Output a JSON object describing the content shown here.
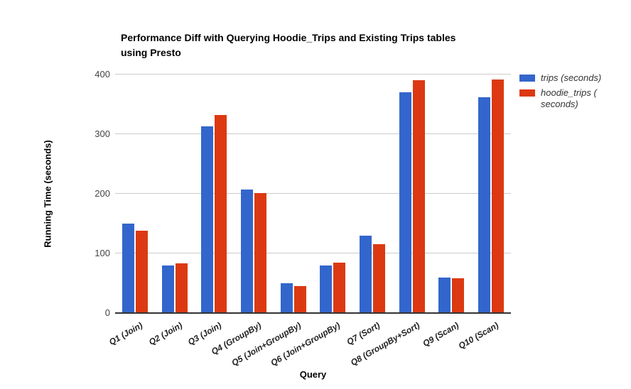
{
  "chart_data": {
    "type": "bar",
    "title": "Performance Diff with Querying Hoodie_Trips and Existing Trips tables using Presto",
    "title_lines": [
      "Performance Diff with Querying Hoodie_Trips and Existing Trips tables",
      "using Presto"
    ],
    "xlabel": "Query",
    "ylabel": "Running Time (seconds)",
    "ylim": [
      0,
      400
    ],
    "yticks": [
      0,
      100,
      200,
      300,
      400
    ],
    "grid": true,
    "legend_position": "right",
    "categories": [
      "Q1 (Join)",
      "Q2 (Join)",
      "Q3 (Join)",
      "Q4 (GroupBy)",
      "Q5 (Join+GroupBy)",
      "Q6 (Join+GroupBy)",
      "Q7 (Sort)",
      "Q8 (GroupBy+Sort)",
      "Q9 (Scan)",
      "Q10 (Scan)"
    ],
    "series": [
      {
        "name": "trips (seconds)",
        "color": "#3366cc",
        "values": [
          150,
          80,
          313,
          207,
          50,
          80,
          130,
          370,
          60,
          362
        ]
      },
      {
        "name": "hoodie_trips ( seconds)",
        "color": "#dc3912",
        "values": [
          138,
          83,
          332,
          201,
          45,
          85,
          116,
          390,
          58,
          392
        ]
      }
    ],
    "colors": {
      "grid": "#cccccc",
      "baseline": "#333333",
      "tick_label": "#444444",
      "category_label": "#222222",
      "axis_title": "#000000",
      "title": "#000000",
      "legend_text": "#333333",
      "background": "#ffffff"
    }
  },
  "legend": {
    "items": [
      {
        "label": "trips (seconds)",
        "lines": [
          "trips (seconds)"
        ],
        "color": "#3366cc"
      },
      {
        "label": "hoodie_trips ( seconds)",
        "lines": [
          "hoodie_trips (",
          "seconds)"
        ],
        "color": "#dc3912"
      }
    ]
  }
}
